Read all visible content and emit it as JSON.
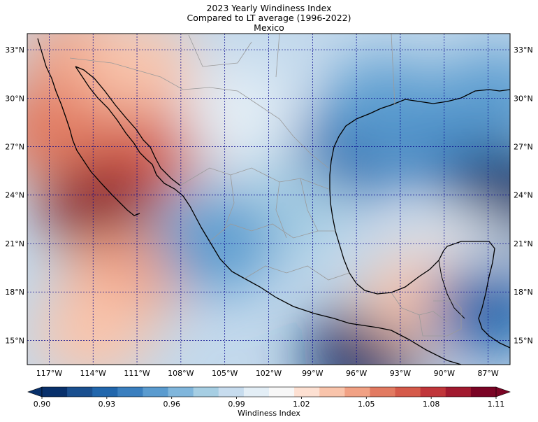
{
  "title": {
    "line1": "2023 Yearly Windiness Index",
    "line2": "Compared to LT average (1996-2022)",
    "line3": "Mexico"
  },
  "map": {
    "lon_range": [
      -118.5,
      -85.5
    ],
    "lat_range": [
      13.5,
      34.0
    ],
    "lon_ticks": [
      {
        "value": -117,
        "label": "117°W"
      },
      {
        "value": -114,
        "label": "114°W"
      },
      {
        "value": -111,
        "label": "111°W"
      },
      {
        "value": -108,
        "label": "108°W"
      },
      {
        "value": -105,
        "label": "105°W"
      },
      {
        "value": -102,
        "label": "102°W"
      },
      {
        "value": -99,
        "label": "99°W"
      },
      {
        "value": -96,
        "label": "96°W"
      },
      {
        "value": -93,
        "label": "93°W"
      },
      {
        "value": -90,
        "label": "90°W"
      },
      {
        "value": -87,
        "label": "87°W"
      }
    ],
    "lat_ticks": [
      {
        "value": 33,
        "label": "33°N"
      },
      {
        "value": 30,
        "label": "30°N"
      },
      {
        "value": 27,
        "label": "27°N"
      },
      {
        "value": 24,
        "label": "24°N"
      },
      {
        "value": 21,
        "label": "21°N"
      },
      {
        "value": 18,
        "label": "18°N"
      },
      {
        "value": 15,
        "label": "15°N"
      }
    ],
    "grid": true,
    "grid_color": "#00008b"
  },
  "colorbar": {
    "label": "Windiness Index",
    "min": 0.9,
    "max": 1.11,
    "tick_labels": [
      "0.90",
      "0.93",
      "0.96",
      "0.99",
      "1.02",
      "1.05",
      "1.08",
      "1.11"
    ],
    "colors": [
      "#08306b",
      "#1a4f8f",
      "#2166ac",
      "#3a7fbf",
      "#5a9bcf",
      "#80b6dc",
      "#a6cee3",
      "#c7dcee",
      "#e3eef6",
      "#f7f7f7",
      "#fde0d2",
      "#f9c4ab",
      "#f1a184",
      "#e27a61",
      "#d55a4a",
      "#c0363a",
      "#a11a2f",
      "#7a0425"
    ]
  },
  "field": {
    "type": "contour",
    "value_range": [
      0.9,
      1.11
    ],
    "regions": [
      {
        "name": "baja-pacific",
        "lon": -113.5,
        "lat": 23.5,
        "value": 1.1
      },
      {
        "name": "sonora",
        "lon": -109.5,
        "lat": 27.5,
        "value": 1.07
      },
      {
        "name": "southern-california",
        "lon": -115.0,
        "lat": 32.5,
        "value": 1.05
      },
      {
        "name": "nw-pacific-coast",
        "lon": -117.0,
        "lat": 28.0,
        "value": 1.06
      },
      {
        "name": "pacific-mid",
        "lon": -112.0,
        "lat": 19.0,
        "value": 1.05
      },
      {
        "name": "pacific-south",
        "lon": -114.0,
        "lat": 15.5,
        "value": 1.03
      },
      {
        "name": "gulf-of-mexico-west",
        "lon": -96.0,
        "lat": 27.0,
        "value": 0.93
      },
      {
        "name": "gulf-of-mexico-east",
        "lon": -89.0,
        "lat": 27.0,
        "value": 0.94
      },
      {
        "name": "east-edge",
        "lon": -85.8,
        "lat": 24.0,
        "value": 0.91
      },
      {
        "name": "tehuantepec",
        "lon": -95.5,
        "lat": 14.0,
        "value": 0.91
      },
      {
        "name": "central-mexico",
        "lon": -101.0,
        "lat": 23.0,
        "value": 0.98
      },
      {
        "name": "jalisco-coast",
        "lon": -105.5,
        "lat": 21.0,
        "value": 0.95
      },
      {
        "name": "yucatan",
        "lon": -89.0,
        "lat": 20.0,
        "value": 1.0
      },
      {
        "name": "tabasco",
        "lon": -91.5,
        "lat": 17.5,
        "value": 1.04
      },
      {
        "name": "texas-gulf",
        "lon": -94.0,
        "lat": 29.5,
        "value": 0.95
      },
      {
        "name": "caribbean",
        "lon": -87.0,
        "lat": 17.0,
        "value": 0.93
      },
      {
        "name": "chihuahua",
        "lon": -104.0,
        "lat": 29.0,
        "value": 1.0
      },
      {
        "name": "arizona",
        "lon": -111.0,
        "lat": 32.0,
        "value": 1.04
      },
      {
        "name": "florida-area",
        "lon": -86.5,
        "lat": 30.0,
        "value": 0.95
      }
    ]
  }
}
